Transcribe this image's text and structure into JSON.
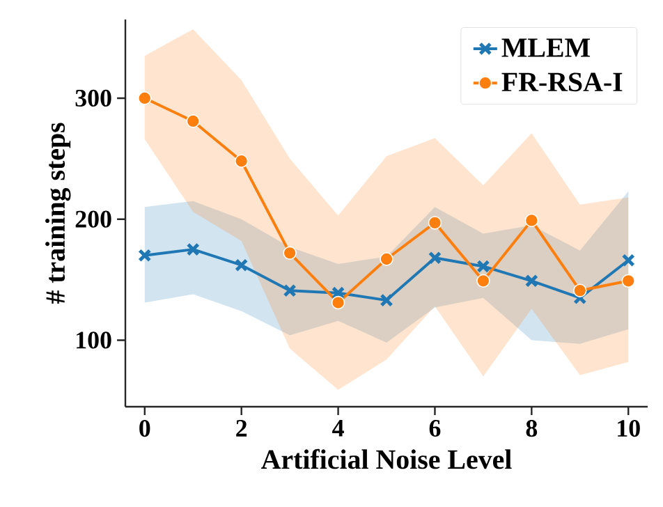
{
  "chart_data": {
    "type": "line",
    "xlabel": "Artificial Noise Level",
    "ylabel": "# training steps",
    "x": [
      0,
      1,
      2,
      3,
      4,
      5,
      6,
      7,
      8,
      9,
      10
    ],
    "series": [
      {
        "name": "MLEM",
        "color": "#1f77b4",
        "marker": "cross",
        "values": [
          170,
          175,
          162,
          141,
          139,
          133,
          168,
          161,
          149,
          135,
          166
        ],
        "lower": [
          131,
          138,
          124,
          104,
          116,
          98,
          127,
          135,
          100,
          97,
          109
        ],
        "upper": [
          210,
          215,
          200,
          177,
          163,
          169,
          210,
          188,
          195,
          174,
          223
        ]
      },
      {
        "name": "FR-RSA-I",
        "color": "#ff7f0e",
        "marker": "circle",
        "values": [
          300,
          281,
          248,
          172,
          131,
          167,
          197,
          149,
          199,
          141,
          149
        ],
        "lower": [
          266,
          206,
          182,
          93,
          59,
          84,
          128,
          70,
          126,
          71,
          82
        ],
        "upper": [
          335,
          357,
          315,
          250,
          203,
          252,
          267,
          228,
          271,
          212,
          218
        ]
      }
    ],
    "xlim": [
      -0.4,
      10.4
    ],
    "ylim": [
      45,
      365
    ],
    "xticks": [
      0,
      2,
      4,
      6,
      8,
      10
    ],
    "yticks": [
      100,
      200,
      300
    ],
    "grid": false,
    "legend": "top right",
    "line_style": "solid"
  }
}
